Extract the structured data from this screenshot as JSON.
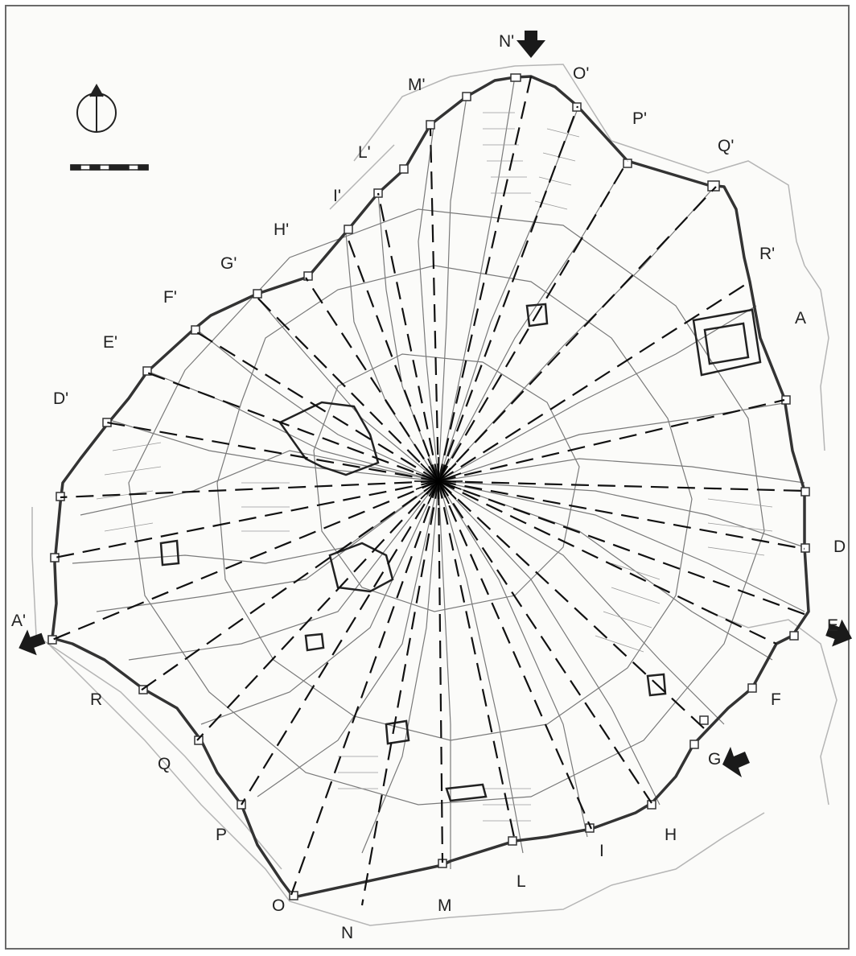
{
  "colors": {
    "ink": "#222222",
    "wall": "#333333",
    "faint": "#b5b5b5",
    "paper": "#fbfbf9"
  },
  "icons": {
    "north": "north-arrow-icon",
    "scale": "scale-bar-icon",
    "entry": "entry-arrow-icon"
  },
  "labels": {
    "A": "A",
    "D": "D",
    "E": "E",
    "F": "F",
    "G": "G",
    "H": "H",
    "I": "I",
    "L": "L",
    "M": "M",
    "N": "N",
    "O": "O",
    "P": "P",
    "Q": "Q",
    "R": "R",
    "A_prime": "A'",
    "D_prime": "D'",
    "E_prime": "E'",
    "F_prime": "F'",
    "G_prime": "G'",
    "H_prime": "H'",
    "I_prime": "I'",
    "L_prime": "L'",
    "M_prime": "M'",
    "N_prime": "N'",
    "O_prime": "O'",
    "P_prime": "P'",
    "Q_prime": "Q'",
    "R_prime": "R'"
  }
}
